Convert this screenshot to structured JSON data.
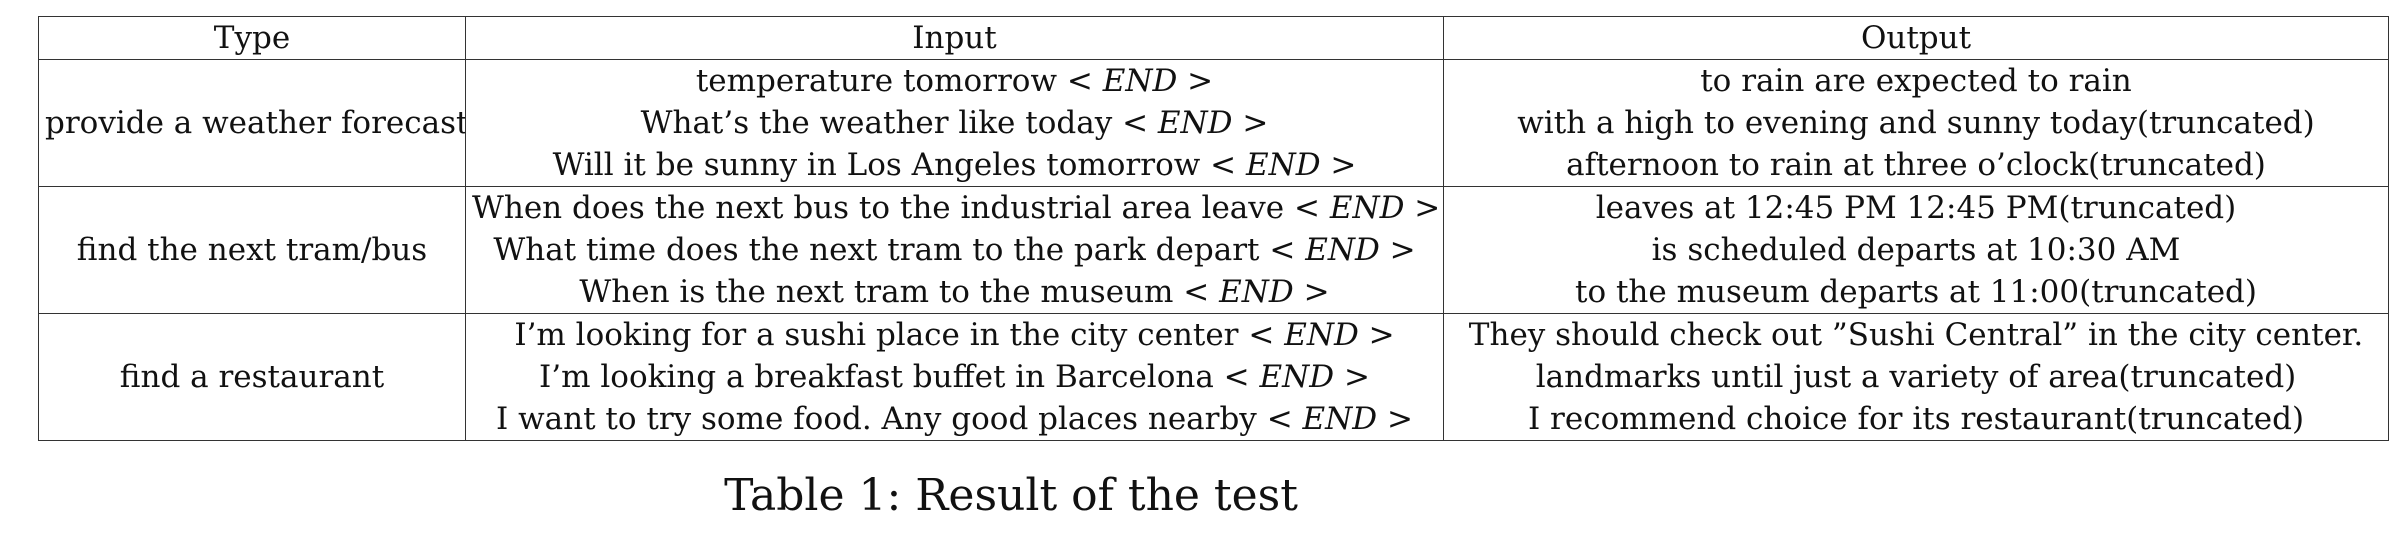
{
  "table": {
    "headers": [
      "Type",
      "Input",
      "Output"
    ],
    "end_tag": {
      "open": "< ",
      "word": "END",
      "close": " >"
    },
    "groups": [
      {
        "type": "provide a weather forecast",
        "inputs": [
          "temperature tomorrow",
          "What’s the weather like today",
          "Will it be sunny in Los Angeles tomorrow"
        ],
        "outputs": [
          "to rain are expected to rain",
          "with a high to evening and sunny today(truncated)",
          "afternoon to rain at three o’clock(truncated)"
        ]
      },
      {
        "type": "find the next tram/bus",
        "inputs": [
          "When does the next bus to the industrial area leave",
          "What time does the next tram to the park depart",
          "When is the next tram to the museum"
        ],
        "outputs": [
          "leaves at 12:45 PM 12:45 PM(truncated)",
          "is scheduled departs at 10:30 AM",
          "to the museum departs at 11:00(truncated)"
        ]
      },
      {
        "type": "find a restaurant",
        "inputs": [
          "I’m looking for a sushi place in the city center",
          "I’m looking a breakfast buffet in Barcelona",
          "I want to try some food. Any good places nearby"
        ],
        "outputs": [
          "They should check out ”Sushi Central” in the city center.",
          "landmarks until just a variety of area(truncated)",
          "I recommend choice for its restaurant(truncated)"
        ]
      }
    ]
  },
  "caption": "Table 1: Result of the test"
}
